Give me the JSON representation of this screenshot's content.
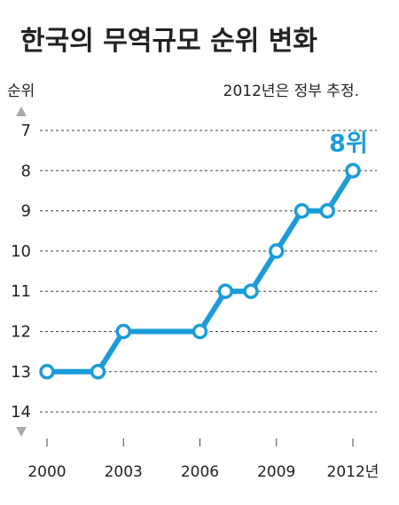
{
  "chart_data": {
    "type": "line",
    "title": "한국의 무역규모 순위 변화",
    "ylabel": "순위",
    "note": "2012년은 정부 추정.",
    "highlight_label": "8위",
    "x": [
      2000,
      2002,
      2003,
      2006,
      2007,
      2008,
      2009,
      2010,
      2011,
      2012
    ],
    "series": [
      {
        "values": [
          13,
          13,
          12,
          12,
          11,
          11,
          10,
          9,
          9,
          8
        ]
      }
    ],
    "x_ticks": [
      "2000",
      "2003",
      "2006",
      "2009",
      "2012년"
    ],
    "y_ticks": [
      "7",
      "8",
      "9",
      "10",
      "11",
      "12",
      "13",
      "14"
    ],
    "ylim": [
      14,
      7
    ],
    "y_inverted": true,
    "xlim": [
      2000,
      2012
    ],
    "grid": true,
    "colors": {
      "line": "#1b9cd8",
      "highlight": "#1b9cd8",
      "grid": "#444444",
      "text": "#222222",
      "arrow": "#aaaaaa"
    }
  }
}
